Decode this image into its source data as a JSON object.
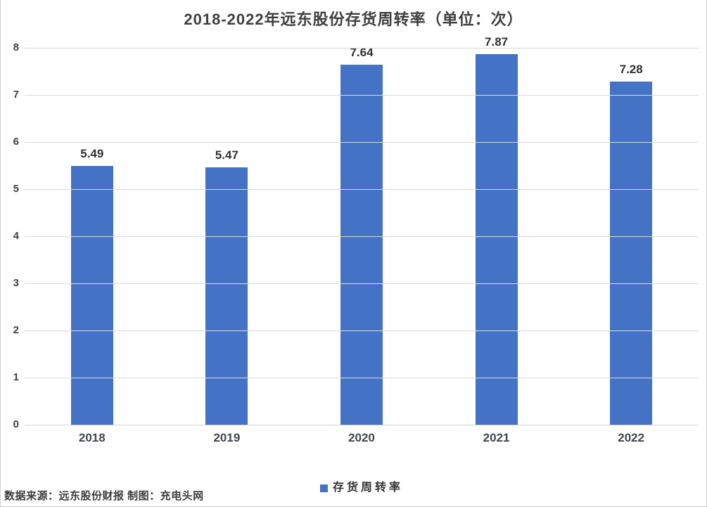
{
  "title": "2018-2022年远东股份存货周转率（单位：次）",
  "source_note": "数据来源：远东股份财报 制图：充电头网",
  "legend": {
    "label": "存货周转率",
    "marker_color": "#4472C4"
  },
  "colors": {
    "bar": "#4472C4",
    "gridline": "#d9d9d9",
    "axis_line": "#d3d3d3",
    "text": "#404040",
    "frame_border": "#cfcfcf"
  },
  "chart_data": {
    "type": "bar",
    "title": "2018-2022年远东股份存货周转率（单位：次）",
    "categories": [
      "2018",
      "2019",
      "2020",
      "2021",
      "2022"
    ],
    "series": [
      {
        "name": "存货周转率",
        "values": [
          5.49,
          5.47,
          7.64,
          7.87,
          7.28
        ]
      }
    ],
    "data_labels": [
      "5.49",
      "5.47",
      "7.64",
      "7.87",
      "7.28"
    ],
    "xlabel": "",
    "ylabel": "",
    "ylim": [
      0,
      8
    ],
    "yticks": [
      0,
      1,
      2,
      3,
      4,
      5,
      6,
      7,
      8
    ],
    "grid": true,
    "legend_position": "bottom-center",
    "bar_color": "#4472C4"
  }
}
